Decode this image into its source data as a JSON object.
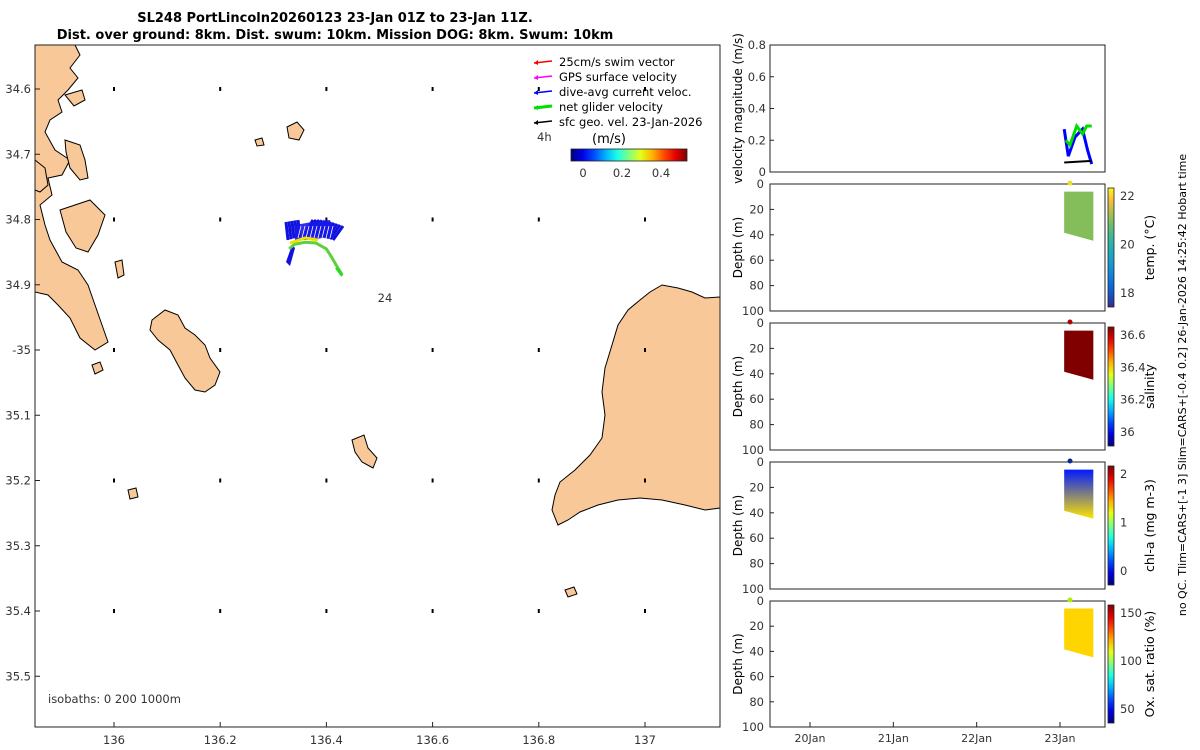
{
  "title_lines": [
    "SL248 PortLincoln20260123 23-Jan 01Z to 23-Jan 11Z.",
    "Dist. over ground: 8km. Dist. swum: 10km. Mission DOG: 8km. Swum: 10km"
  ],
  "side_label": "no QC. Tlim=CARS+[-1 3] Slim=CARS+[-0.4 0.2] 26-Jan-2026 14:25:42 Hobart time",
  "map": {
    "x_ticks": [
      {
        "v": 136,
        "label": "136"
      },
      {
        "v": 136.2,
        "label": "136.2"
      },
      {
        "v": 136.4,
        "label": "136.4"
      },
      {
        "v": 136.6,
        "label": "136.6"
      },
      {
        "v": 136.8,
        "label": "136.8"
      },
      {
        "v": 137,
        "label": "137"
      }
    ],
    "y_ticks": [
      {
        "v": -34.6,
        "label": "34.6"
      },
      {
        "v": -34.7,
        "label": "34.7"
      },
      {
        "v": -34.8,
        "label": "34.8"
      },
      {
        "v": -34.9,
        "label": "34.9"
      },
      {
        "v": -35.0,
        "label": "-35"
      },
      {
        "v": -35.1,
        "label": "35.1"
      },
      {
        "v": -35.2,
        "label": "35.2"
      },
      {
        "v": -35.3,
        "label": "35.3"
      },
      {
        "v": -35.4,
        "label": "35.4"
      },
      {
        "v": -35.5,
        "label": "35.5"
      }
    ],
    "legend": [
      {
        "label": "25cm/s swim vector",
        "color": "#ff0000"
      },
      {
        "label": "GPS surface velocity",
        "color": "#ff00ff"
      },
      {
        "label": "dive-avg current veloc.",
        "color": "#0000ff"
      },
      {
        "label": "net glider velocity",
        "color": "#00dd00"
      },
      {
        "label": "sfc geo. vel. 23-Jan-2026",
        "color": "#000000"
      }
    ],
    "time_label": "4h",
    "colorbar_unit": "(m/s)",
    "colorbar_ticks": [
      "0",
      "0.2",
      "0.4"
    ],
    "annotation": "24",
    "isobath_label": "isobaths: 0   200  1000m",
    "land_color": "#f9c898"
  },
  "panels": [
    {
      "ylabel": "velocity magnitude (m/s)",
      "y_ticks": [
        "0",
        "0.2",
        "0.4",
        "0.6",
        "0.8"
      ]
    },
    {
      "ylabel": "Depth (m)",
      "cblabel": "temp. (°C)",
      "cb_ticks": [
        "22",
        "20",
        "18"
      ],
      "cb_colormap": "parula",
      "dot_color": "#e9e026"
    },
    {
      "ylabel": "Depth (m)",
      "cblabel": "salinity",
      "cb_ticks": [
        "36.6",
        "36.4",
        "36.2",
        "36"
      ],
      "cb_colormap": "jet",
      "dot_color": "#b00000"
    },
    {
      "ylabel": "Depth (m)",
      "cblabel": "chl-a (mg m-3)",
      "cb_ticks": [
        "2",
        "1",
        "0"
      ],
      "cb_colormap": "jet",
      "dot_color": "#0a2a9a"
    },
    {
      "ylabel": "Depth (m)",
      "cblabel": "Ox. sat. ratio (%)",
      "cb_ticks": [
        "150",
        "100",
        "50"
      ],
      "cb_colormap": "jet",
      "dot_color": "#a8f000"
    }
  ],
  "depth_ticks": [
    "0",
    "20",
    "40",
    "60",
    "80",
    "100"
  ],
  "date_ticks": [
    "20Jan",
    "21Jan",
    "22Jan",
    "23Jan"
  ],
  "chart_data": {
    "type": "line",
    "title": "SL248 PortLincoln20260123 23-Jan 01Z to 23-Jan 11Z.",
    "xlabel": "",
    "ylabel": "velocity magnitude (m/s)",
    "ylim": [
      0,
      0.8
    ],
    "x_categories": [
      "20Jan",
      "21Jan",
      "22Jan",
      "23Jan"
    ],
    "series": [
      {
        "name": "dive-avg current veloc.",
        "color": "#0000ff",
        "x_day": [
          23.05,
          23.1,
          23.18,
          23.27,
          23.33,
          23.38
        ],
        "values": [
          0.27,
          0.1,
          0.22,
          0.27,
          0.14,
          0.05
        ]
      },
      {
        "name": "net glider velocity",
        "color": "#00dd00",
        "x_day": [
          23.07,
          23.12,
          23.2,
          23.27,
          23.32,
          23.38
        ],
        "values": [
          0.2,
          0.17,
          0.29,
          0.24,
          0.29,
          0.29
        ]
      },
      {
        "name": "sfc geo. vel. 23-Jan-2026",
        "color": "#000000",
        "x_day": [
          23.05,
          23.38
        ],
        "values": [
          0.06,
          0.07
        ]
      }
    ],
    "track": {
      "lon": [
        136.33,
        136.34,
        136.36,
        136.38,
        136.4,
        136.41,
        136.42,
        136.43
      ],
      "lat": [
        -34.845,
        -34.838,
        -34.835,
        -34.836,
        -34.845,
        -34.858,
        -34.872,
        -34.885
      ]
    },
    "sections": [
      {
        "field": "temp. (°C)",
        "clim": [
          17,
          22.5
        ],
        "x_day": [
          23.05,
          23.4
        ],
        "depth_range": [
          6,
          40
        ],
        "value": 21
      },
      {
        "field": "salinity",
        "clim": [
          35.9,
          36.7
        ],
        "x_day": [
          23.05,
          23.4
        ],
        "depth_range": [
          6,
          40
        ],
        "value": 36.7
      },
      {
        "field": "chl-a (mg m-3)",
        "clim": [
          0,
          2
        ],
        "x_day": [
          23.05,
          23.4
        ],
        "depth_range": [
          6,
          40
        ],
        "surface_value": 0.3,
        "deep_value": 1.3
      },
      {
        "field": "Ox. sat. ratio (%)",
        "clim": [
          20,
          170
        ],
        "x_day": [
          23.05,
          23.4
        ],
        "depth_range": [
          6,
          40
        ],
        "value": 120
      }
    ]
  }
}
